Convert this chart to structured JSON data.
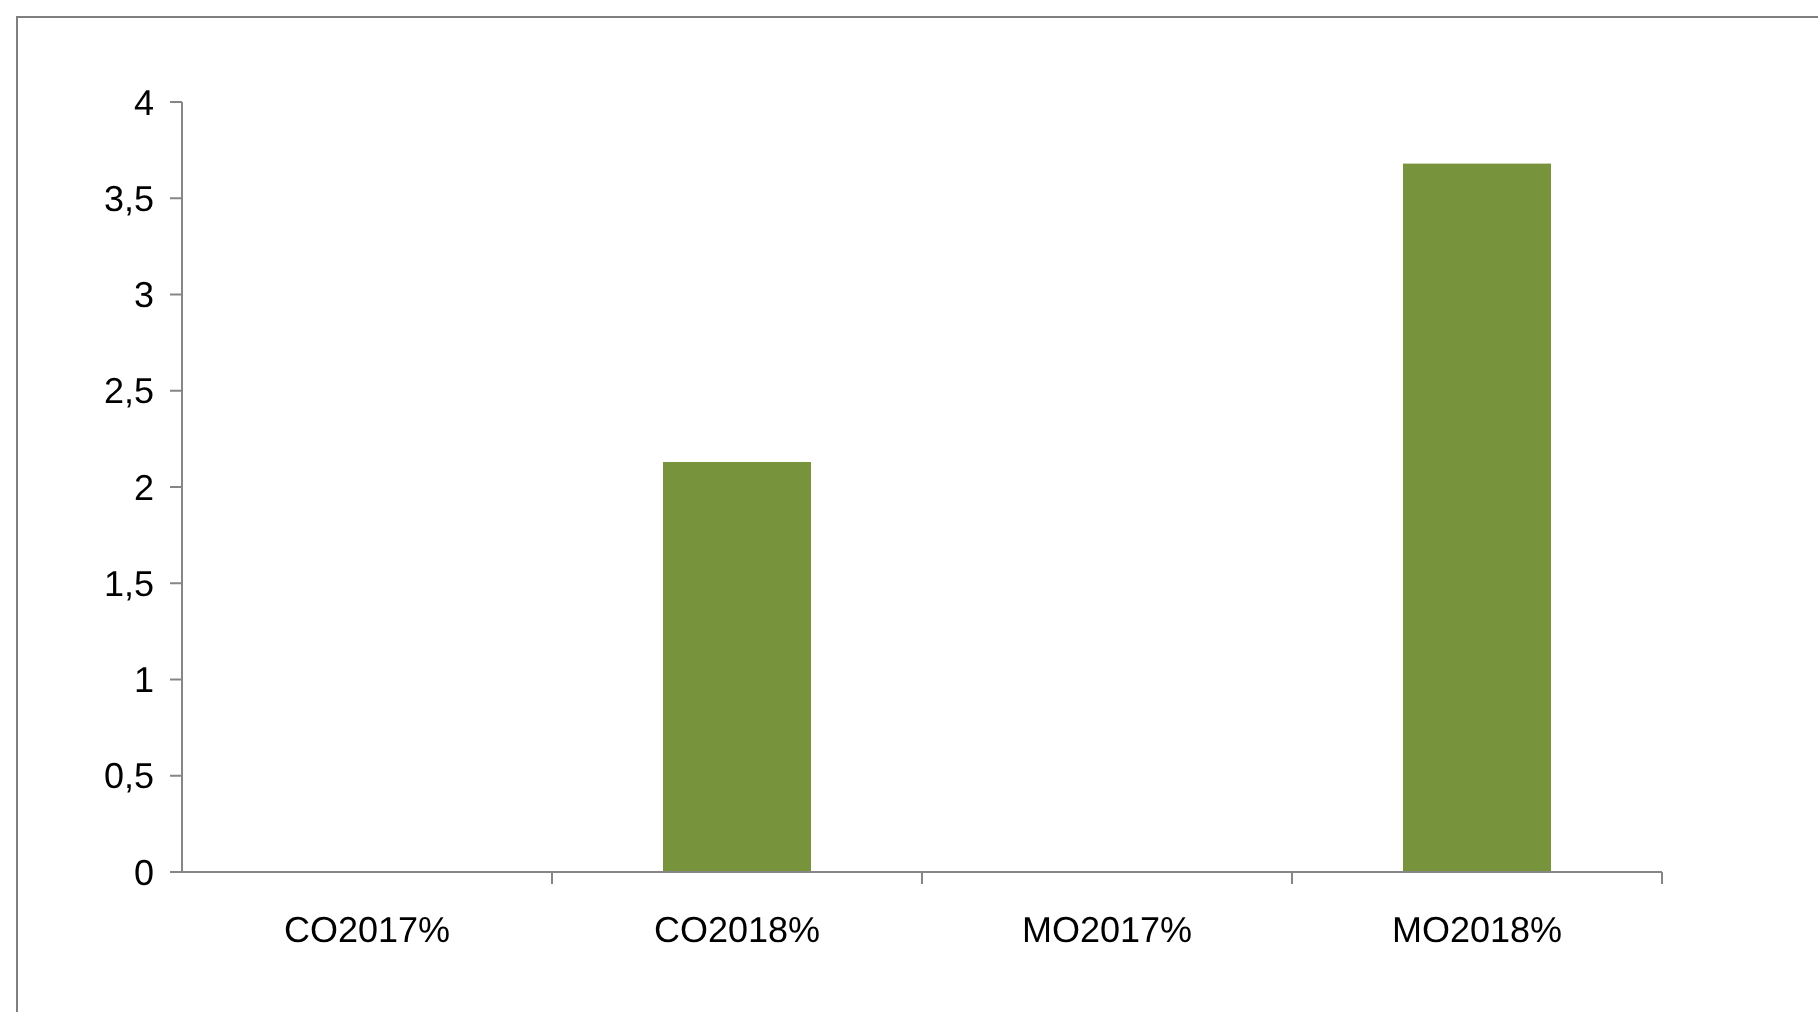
{
  "chart_data": {
    "type": "bar",
    "categories": [
      "CO2017%",
      "CO2018%",
      "MO2017%",
      "MO2018%"
    ],
    "values": [
      0,
      2.13,
      0,
      3.68
    ],
    "color": "#77933c",
    "ylim": [
      0,
      4
    ],
    "yticks": [
      0,
      {
        "value": 0.5,
        "label": "0,5"
      },
      1,
      {
        "value": 1.5,
        "label": "1,5"
      },
      2,
      {
        "value": 2.5,
        "label": "2,5"
      },
      3,
      {
        "value": 3.5,
        "label": "3,5"
      },
      4
    ],
    "grid": false
  }
}
